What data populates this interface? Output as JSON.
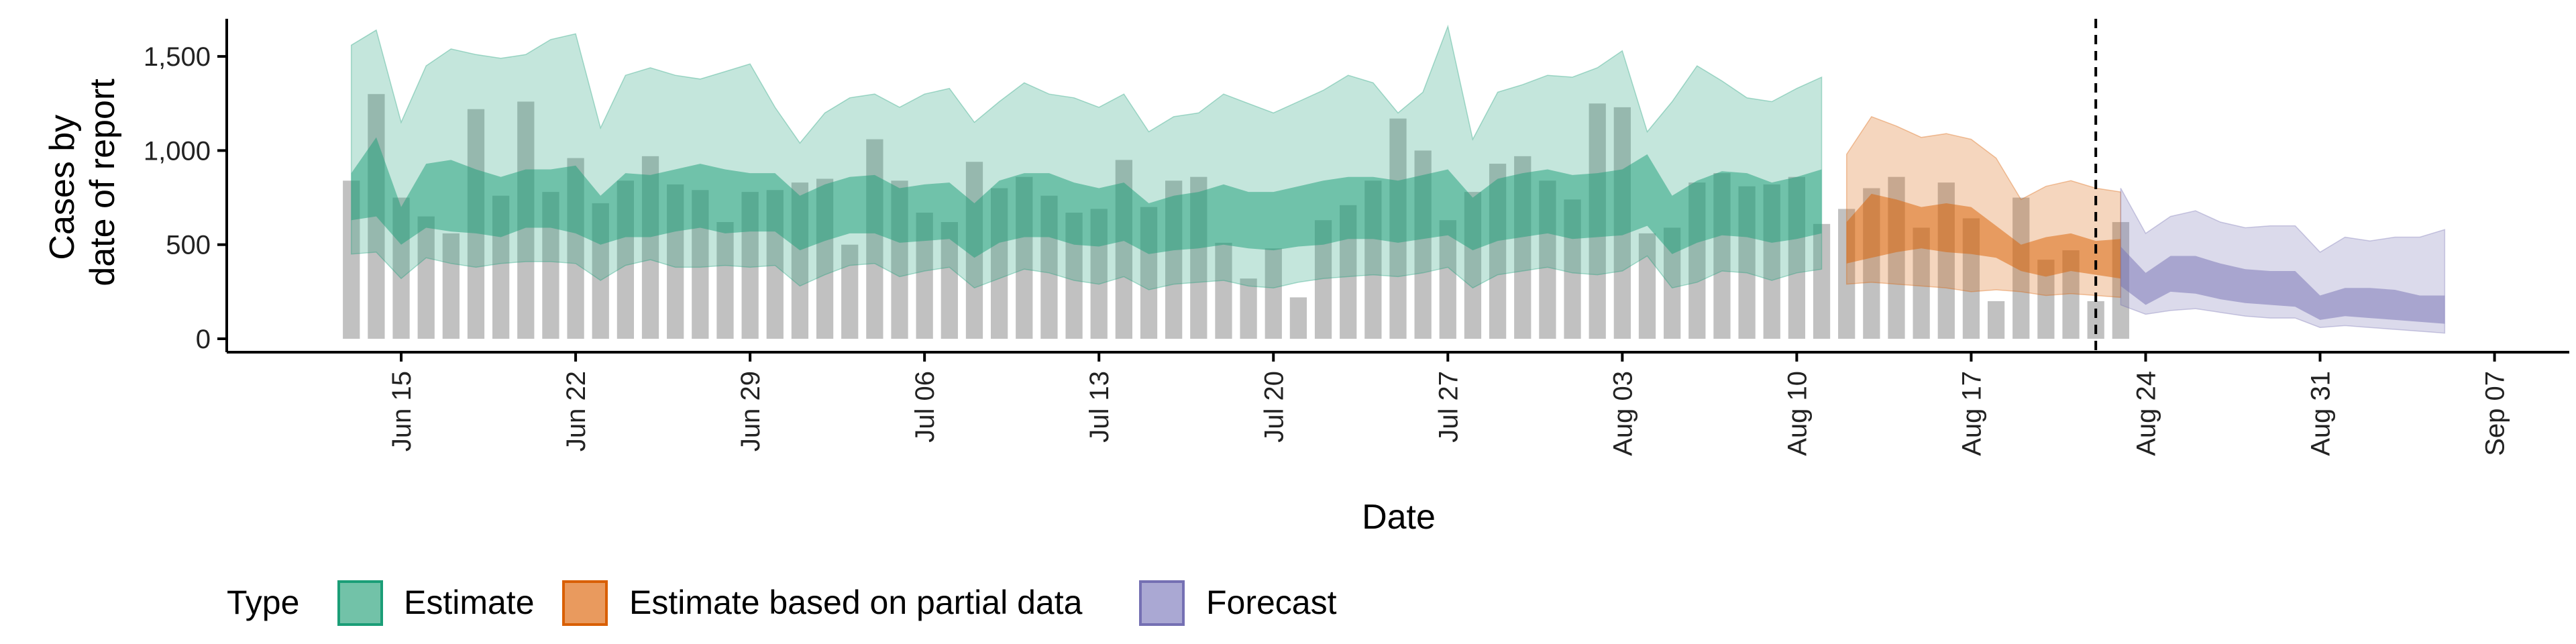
{
  "chart_data": {
    "type": "bar",
    "title": "",
    "xlabel": "Date",
    "ylabel_lines": [
      "Cases by",
      "date of report"
    ],
    "ylim": [
      0,
      1700
    ],
    "yticks": [
      0,
      500,
      1000,
      1500
    ],
    "ytick_labels": [
      "0",
      "500",
      "1,000",
      "1,500"
    ],
    "xlim": [
      "2020-06-08",
      "2020-09-10"
    ],
    "xticks": [
      "2020-06-15",
      "2020-06-22",
      "2020-06-29",
      "2020-07-06",
      "2020-07-13",
      "2020-07-20",
      "2020-07-27",
      "2020-08-03",
      "2020-08-10",
      "2020-08-17",
      "2020-08-24",
      "2020-08-31",
      "2020-09-07"
    ],
    "xtick_labels": [
      "Jun 15",
      "Jun 22",
      "Jun 29",
      "Jul 06",
      "Jul 13",
      "Jul 20",
      "Jul 27",
      "Aug 03",
      "Aug 10",
      "Aug 17",
      "Aug 24",
      "Aug 31",
      "Sep 07"
    ],
    "vline_date": "2020-08-22",
    "bars": {
      "start": "2020-06-13",
      "values": [
        840,
        1300,
        750,
        650,
        560,
        1220,
        760,
        1260,
        780,
        960,
        720,
        840,
        970,
        820,
        790,
        620,
        780,
        790,
        830,
        850,
        500,
        1060,
        840,
        670,
        620,
        940,
        800,
        860,
        760,
        670,
        690,
        950,
        700,
        840,
        860,
        510,
        320,
        480,
        220,
        630,
        710,
        840,
        1170,
        1000,
        630,
        780,
        930,
        970,
        840,
        740,
        1250,
        1230,
        560,
        590,
        830,
        880,
        810,
        820,
        860,
        610,
        690,
        800,
        860,
        590,
        830,
        640,
        200,
        750,
        420,
        470,
        200,
        620
      ]
    },
    "bands": [
      {
        "name": "Estimate",
        "color": "#1b9e77",
        "start": "2020-06-13",
        "outer_lower": [
          450,
          460,
          320,
          430,
          400,
          380,
          400,
          410,
          410,
          400,
          310,
          390,
          420,
          380,
          380,
          390,
          380,
          390,
          280,
          340,
          390,
          400,
          330,
          360,
          380,
          270,
          320,
          370,
          350,
          310,
          290,
          330,
          260,
          290,
          300,
          310,
          280,
          270,
          300,
          320,
          330,
          340,
          330,
          350,
          380,
          270,
          340,
          360,
          380,
          350,
          340,
          360,
          440,
          270,
          300,
          360,
          350,
          310,
          350,
          370
        ],
        "mid_lower": [
          630,
          650,
          500,
          590,
          570,
          560,
          540,
          590,
          590,
          560,
          500,
          540,
          540,
          570,
          590,
          560,
          570,
          570,
          470,
          520,
          560,
          560,
          510,
          520,
          530,
          430,
          510,
          540,
          540,
          500,
          490,
          520,
          450,
          470,
          480,
          500,
          480,
          470,
          490,
          500,
          530,
          530,
          510,
          530,
          550,
          470,
          520,
          540,
          560,
          530,
          540,
          550,
          600,
          450,
          510,
          550,
          540,
          510,
          530,
          560
        ],
        "mid_upper": [
          880,
          1070,
          700,
          930,
          950,
          900,
          860,
          900,
          900,
          920,
          760,
          880,
          870,
          900,
          930,
          900,
          880,
          880,
          760,
          820,
          860,
          870,
          800,
          820,
          830,
          720,
          840,
          880,
          880,
          830,
          800,
          830,
          720,
          760,
          780,
          820,
          780,
          780,
          810,
          840,
          860,
          860,
          840,
          870,
          900,
          750,
          850,
          880,
          900,
          870,
          880,
          900,
          980,
          760,
          840,
          890,
          880,
          830,
          860,
          900
        ],
        "outer_upper": [
          1560,
          1640,
          1150,
          1450,
          1540,
          1510,
          1490,
          1510,
          1590,
          1620,
          1120,
          1400,
          1440,
          1400,
          1380,
          1420,
          1460,
          1230,
          1040,
          1200,
          1280,
          1300,
          1230,
          1300,
          1330,
          1150,
          1260,
          1360,
          1300,
          1280,
          1230,
          1300,
          1100,
          1180,
          1200,
          1300,
          1250,
          1200,
          1260,
          1320,
          1400,
          1360,
          1200,
          1310,
          1660,
          1060,
          1310,
          1350,
          1400,
          1390,
          1440,
          1530,
          1100,
          1260,
          1450,
          1370,
          1280,
          1260,
          1330,
          1390
        ]
      },
      {
        "name": "Estimate based on partial data",
        "color": "#d95f02",
        "start": "2020-08-12",
        "outer_lower": [
          290,
          300,
          290,
          280,
          270,
          250,
          260,
          250,
          230,
          240,
          230,
          220
        ],
        "mid_lower": [
          400,
          430,
          460,
          480,
          460,
          450,
          430,
          360,
          330,
          360,
          340,
          320
        ],
        "mid_upper": [
          620,
          770,
          740,
          700,
          720,
          700,
          600,
          500,
          540,
          560,
          520,
          530
        ],
        "outer_upper": [
          980,
          1180,
          1130,
          1070,
          1090,
          1060,
          960,
          740,
          810,
          840,
          800,
          780
        ]
      },
      {
        "name": "Forecast",
        "color": "#7570b3",
        "start": "2020-08-23",
        "outer_lower": [
          180,
          130,
          150,
          160,
          140,
          120,
          110,
          110,
          60,
          70,
          60,
          50,
          40,
          30
        ],
        "mid_lower": [
          280,
          180,
          250,
          240,
          210,
          190,
          180,
          170,
          100,
          120,
          110,
          100,
          90,
          80
        ],
        "mid_upper": [
          490,
          350,
          440,
          440,
          400,
          370,
          360,
          360,
          230,
          270,
          270,
          260,
          230,
          230
        ],
        "outer_upper": [
          800,
          560,
          650,
          680,
          620,
          590,
          600,
          600,
          460,
          540,
          520,
          540,
          540,
          580
        ]
      }
    ],
    "legend": {
      "title": "Type",
      "position": "bottom",
      "items": [
        {
          "label": "Estimate",
          "color": "#1b9e77"
        },
        {
          "label": "Estimate based on partial data",
          "color": "#d95f02"
        },
        {
          "label": "Forecast",
          "color": "#7570b3"
        }
      ]
    }
  }
}
